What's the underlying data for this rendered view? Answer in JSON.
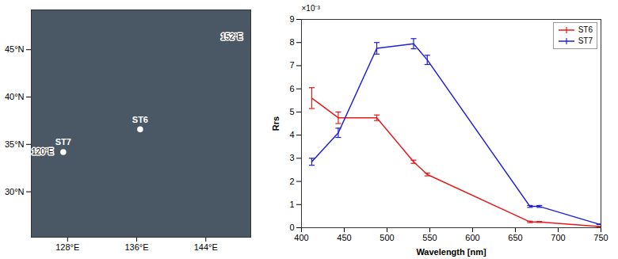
{
  "chart_data": [
    {
      "type": "scatter",
      "xlim": [
        123.8,
        149.2
      ],
      "ylim": [
        25.2,
        49.2
      ],
      "xticks": [
        {
          "value": 128,
          "label": "128°E"
        },
        {
          "value": 136,
          "label": "136°E"
        },
        {
          "value": 144,
          "label": "144°E"
        }
      ],
      "yticks": [
        {
          "value": 30,
          "label": "30°N"
        },
        {
          "value": 35,
          "label": "35°N"
        },
        {
          "value": 40,
          "label": "40°N"
        },
        {
          "value": 45,
          "label": "45°N"
        }
      ],
      "points": [
        {
          "name": "ST6",
          "x": 136.4,
          "y": 36.6
        },
        {
          "name": "ST7",
          "x": 127.5,
          "y": 34.2
        }
      ],
      "annotations": [
        {
          "text": "120°E",
          "x": 125.1,
          "y": 34.2
        },
        {
          "text": "152°E",
          "x": 147.0,
          "y": 46.3
        }
      ],
      "color": "#ffffff"
    },
    {
      "type": "line",
      "xlabel": "Wavelength [nm]",
      "ylabel": "Rrs",
      "y_scale_text": "×10⁻³",
      "x": [
        412,
        443,
        488,
        531,
        547,
        667,
        678,
        748
      ],
      "series": [
        {
          "name": "ST6",
          "color": "#e41a1c",
          "values": [
            0.0056,
            0.00475,
            0.00475,
            0.00285,
            0.0023,
            0.00025,
            0.00025,
            5e-05
          ],
          "errors": [
            0.00045,
            0.00025,
            0.00012,
            7e-05,
            6e-05,
            3e-05,
            2e-05,
            1e-05
          ]
        },
        {
          "name": "ST7",
          "color": "#1f1fd6",
          "values": [
            0.00285,
            0.0041,
            0.00775,
            0.00795,
            0.00725,
            0.00092,
            0.00092,
            0.00015
          ],
          "errors": [
            0.00015,
            0.0002,
            0.00025,
            0.00022,
            0.0002,
            4e-05,
            4e-05,
            1e-05
          ]
        }
      ],
      "xlim": [
        400,
        750
      ],
      "ylim": [
        0,
        0.009
      ],
      "xticks": [
        400,
        450,
        500,
        550,
        600,
        650,
        700,
        750
      ],
      "yticks": [
        0,
        {
          "value": 0.001,
          "label": "1"
        },
        {
          "value": 0.002,
          "label": "2"
        },
        {
          "value": 0.003,
          "label": "3"
        },
        {
          "value": 0.004,
          "label": "4"
        },
        {
          "value": 0.005,
          "label": "5"
        },
        {
          "value": 0.006,
          "label": "6"
        },
        {
          "value": 0.007,
          "label": "7"
        },
        {
          "value": 0.008,
          "label": "8"
        },
        {
          "value": 0.009,
          "label": "9"
        }
      ],
      "legend": "top-right"
    }
  ]
}
